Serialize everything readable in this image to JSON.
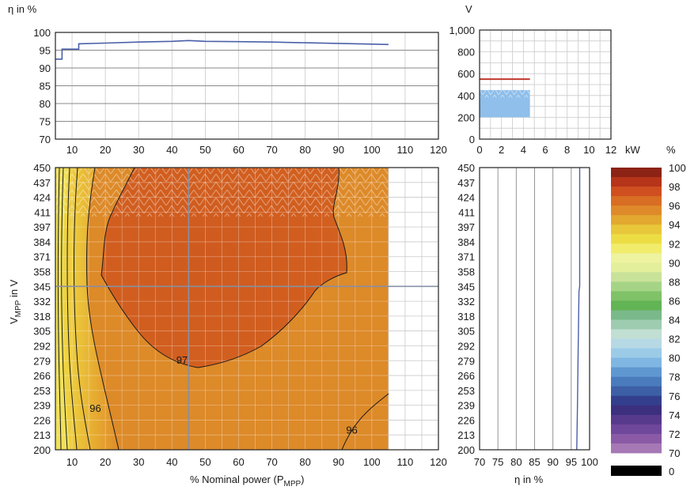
{
  "chart_data": [
    {
      "id": "efficiency_vs_power",
      "type": "line",
      "ylabel": "η in %",
      "xlim": [
        5,
        120
      ],
      "ylim": [
        70,
        100
      ],
      "xticks": [
        10,
        20,
        30,
        40,
        50,
        60,
        70,
        80,
        90,
        100,
        110,
        120
      ],
      "yticks": [
        70,
        75,
        80,
        85,
        90,
        95,
        100
      ],
      "grid": true,
      "series": [
        {
          "color": "#4a5fa8",
          "x": [
            5,
            7,
            7,
            12,
            12,
            20,
            30,
            40,
            45,
            50,
            60,
            70,
            80,
            90,
            100,
            105
          ],
          "y": [
            92.5,
            92.5,
            95.3,
            95.3,
            96.8,
            97.0,
            97.3,
            97.5,
            97.7,
            97.5,
            97.4,
            97.3,
            97.1,
            96.9,
            96.7,
            96.6
          ]
        }
      ]
    },
    {
      "id": "voltage_range",
      "type": "area",
      "ylabel": "V",
      "xlabel": "kW",
      "xlim": [
        0,
        12
      ],
      "ylim": [
        0,
        1000
      ],
      "xticks": [
        0,
        2,
        4,
        6,
        8,
        10,
        12
      ],
      "yticks": [
        0,
        200,
        400,
        600,
        800,
        1000
      ],
      "ytick_labels": [
        "0",
        "200",
        "400",
        "600",
        "800",
        "1,000"
      ],
      "grid": true,
      "band": {
        "x0": 0,
        "x1": 4.6,
        "y0": 200,
        "y1": 450,
        "color": "#8fbfea"
      },
      "max_line": {
        "x0": 0,
        "x1": 4.6,
        "y": 550,
        "color": "#c0392b"
      }
    },
    {
      "id": "efficiency_map",
      "type": "heatmap",
      "xlabel": "% Nominal power (P",
      "xlabel_sub": "MPP",
      "xlabel_end": ")",
      "ylabel": "V",
      "ylabel_sub": "MPP",
      "ylabel_end": " in V",
      "xlim": [
        5,
        120
      ],
      "ylim": [
        200,
        450
      ],
      "xticks": [
        10,
        20,
        30,
        40,
        50,
        60,
        70,
        80,
        90,
        100,
        110,
        120
      ],
      "yticks": [
        200,
        213,
        226,
        239,
        253,
        266,
        279,
        292,
        305,
        318,
        332,
        345,
        358,
        371,
        384,
        397,
        411,
        424,
        437,
        450
      ],
      "data_xmax": 105,
      "crosshair": {
        "x": 45,
        "y": 345
      },
      "contour_labels": [
        {
          "text": "97",
          "x": 43,
          "y": 280
        },
        {
          "text": "96",
          "x": 17,
          "y": 237
        },
        {
          "text": "96",
          "x": 94,
          "y": 218
        }
      ]
    },
    {
      "id": "efficiency_vs_voltage",
      "type": "line",
      "xlabel": "η in %",
      "xlim": [
        70,
        100
      ],
      "ylim": [
        200,
        450
      ],
      "xticks": [
        70,
        75,
        80,
        85,
        90,
        95,
        100
      ],
      "yticks": [
        200,
        213,
        226,
        239,
        253,
        266,
        279,
        292,
        305,
        318,
        332,
        345,
        358,
        371,
        384,
        397,
        411,
        424,
        437,
        450
      ],
      "series": [
        {
          "color": "#4a5fa8",
          "x": [
            96.5,
            96.7,
            96.9,
            97.1,
            97.3,
            97.3
          ],
          "y": [
            200,
            240,
            290,
            340,
            345,
            450
          ]
        }
      ]
    },
    {
      "id": "color_scale",
      "type": "heatmap",
      "title": "%",
      "ticks": [
        100,
        98,
        96,
        94,
        92,
        90,
        88,
        86,
        84,
        82,
        80,
        78,
        76,
        74,
        72,
        70
      ],
      "zero_label": "0",
      "colors": [
        "#8c2314",
        "#b5341a",
        "#cf4f20",
        "#d86d24",
        "#df8a2a",
        "#e2a82f",
        "#e8c73a",
        "#ecdd45",
        "#f1ec6b",
        "#eef3a0",
        "#e3ef9b",
        "#c9e29a",
        "#a6d486",
        "#7fc268",
        "#62b454",
        "#7ab98a",
        "#9dccb0",
        "#c1dfd3",
        "#b7d9e6",
        "#9ccbe8",
        "#7fb6e2",
        "#5f97d1",
        "#4a7bbd",
        "#3d5fa6",
        "#333f8c",
        "#3b2f7e",
        "#573a8c",
        "#6f479b",
        "#8a5aa6",
        "#a678b5"
      ]
    }
  ]
}
